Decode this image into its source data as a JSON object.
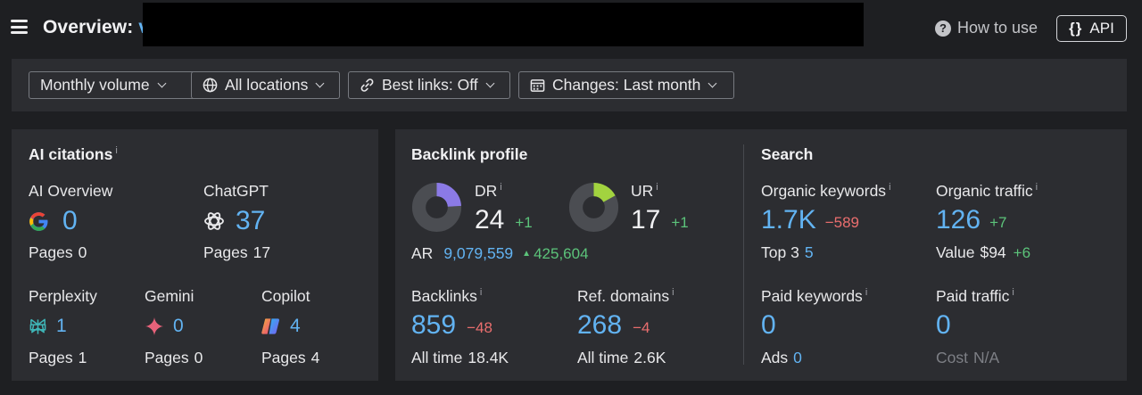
{
  "header": {
    "title": "Overview:",
    "title_partial": "v",
    "how_to_use": "How to use",
    "api_label": "API",
    "api_brace": "{}",
    "help_glyph": "?"
  },
  "filters": [
    {
      "label": "Monthly volume",
      "icon": "none"
    },
    {
      "label": "All locations",
      "icon": "globe-icon"
    },
    {
      "label": "Best links: Off",
      "icon": "link-icon"
    },
    {
      "label": "Changes: Last month",
      "icon": "calendar-icon"
    }
  ],
  "ai_citations": {
    "title": "AI citations",
    "info": "i",
    "ai_overview": {
      "label": "AI Overview",
      "value": "0",
      "pages_label": "Pages",
      "pages": "0",
      "icon": "google-icon"
    },
    "chatgpt": {
      "label": "ChatGPT",
      "value": "37",
      "pages_label": "Pages",
      "pages": "17",
      "icon": "chatgpt-icon"
    },
    "perplexity": {
      "label": "Perplexity",
      "value": "1",
      "pages_label": "Pages",
      "pages": "1",
      "icon": "perplexity-icon"
    },
    "gemini": {
      "label": "Gemini",
      "value": "0",
      "pages_label": "Pages",
      "pages": "0",
      "icon": "gemini-icon"
    },
    "copilot": {
      "label": "Copilot",
      "value": "4",
      "pages_label": "Pages",
      "pages": "4",
      "icon": "copilot-icon"
    }
  },
  "backlink_profile": {
    "title": "Backlink profile",
    "dr": {
      "label": "DR",
      "info": "i",
      "value": "24",
      "delta": "+1",
      "ring_fraction": 0.24,
      "ring_color": "#8b7ae6"
    },
    "ur": {
      "label": "UR",
      "info": "i",
      "value": "17",
      "delta": "+1",
      "ring_fraction": 0.17,
      "ring_color": "#a2d33f"
    },
    "ar": {
      "label": "AR",
      "value": "9,079,559",
      "delta": "425,604",
      "delta_arrow": "▲"
    },
    "backlinks": {
      "label": "Backlinks",
      "info": "i",
      "value": "859",
      "delta": "−48",
      "all_time_label": "All time",
      "all_time": "18.4K"
    },
    "ref_domains": {
      "label": "Ref. domains",
      "info": "i",
      "value": "268",
      "delta": "−4",
      "all_time_label": "All time",
      "all_time": "2.6K"
    }
  },
  "search": {
    "title": "Search",
    "organic_keywords": {
      "label": "Organic keywords",
      "info": "i",
      "value": "1.7K",
      "delta": "−589",
      "sub_label": "Top 3",
      "sub_value": "5"
    },
    "organic_traffic": {
      "label": "Organic traffic",
      "info": "i",
      "value": "126",
      "delta": "+7",
      "sub_label": "Value",
      "sub_value": "$94",
      "sub_delta": "+6"
    },
    "paid_keywords": {
      "label": "Paid keywords",
      "info": "i",
      "value": "0",
      "sub_label": "Ads",
      "sub_value": "0"
    },
    "paid_traffic": {
      "label": "Paid traffic",
      "info": "i",
      "value": "0",
      "sub_label": "Cost",
      "sub_value": "N/A"
    }
  },
  "colors": {
    "background": "#1e1f22",
    "panel": "#2c2d31",
    "accent_blue": "#62b3f2",
    "positive": "#5cc37a",
    "negative": "#ea6e6e"
  }
}
